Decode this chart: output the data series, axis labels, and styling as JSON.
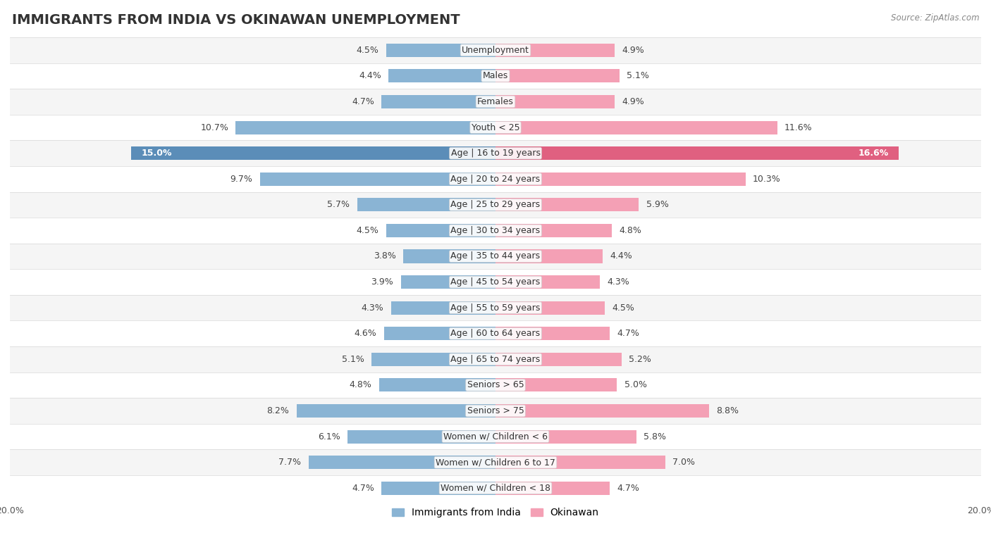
{
  "title": "IMMIGRANTS FROM INDIA VS OKINAWAN UNEMPLOYMENT",
  "source": "Source: ZipAtlas.com",
  "categories": [
    "Unemployment",
    "Males",
    "Females",
    "Youth < 25",
    "Age | 16 to 19 years",
    "Age | 20 to 24 years",
    "Age | 25 to 29 years",
    "Age | 30 to 34 years",
    "Age | 35 to 44 years",
    "Age | 45 to 54 years",
    "Age | 55 to 59 years",
    "Age | 60 to 64 years",
    "Age | 65 to 74 years",
    "Seniors > 65",
    "Seniors > 75",
    "Women w/ Children < 6",
    "Women w/ Children 6 to 17",
    "Women w/ Children < 18"
  ],
  "india_values": [
    4.5,
    4.4,
    4.7,
    10.7,
    15.0,
    9.7,
    5.7,
    4.5,
    3.8,
    3.9,
    4.3,
    4.6,
    5.1,
    4.8,
    8.2,
    6.1,
    7.7,
    4.7
  ],
  "okinawa_values": [
    4.9,
    5.1,
    4.9,
    11.6,
    16.6,
    10.3,
    5.9,
    4.8,
    4.4,
    4.3,
    4.5,
    4.7,
    5.2,
    5.0,
    8.8,
    5.8,
    7.0,
    4.7
  ],
  "india_color": "#8ab4d4",
  "okinawa_color": "#f4a0b5",
  "india_highlight_color": "#5b8db8",
  "okinawa_highlight_color": "#e06080",
  "highlight_rows": [
    4
  ],
  "bar_height": 0.52,
  "xlim": 20.0,
  "bg_color": "#ffffff",
  "row_colors": [
    "#f5f5f5",
    "#ffffff"
  ],
  "row_border_color": "#d8d8d8",
  "title_fontsize": 14,
  "label_fontsize": 9,
  "value_fontsize": 9,
  "legend_fontsize": 10,
  "axis_label_fontsize": 9
}
